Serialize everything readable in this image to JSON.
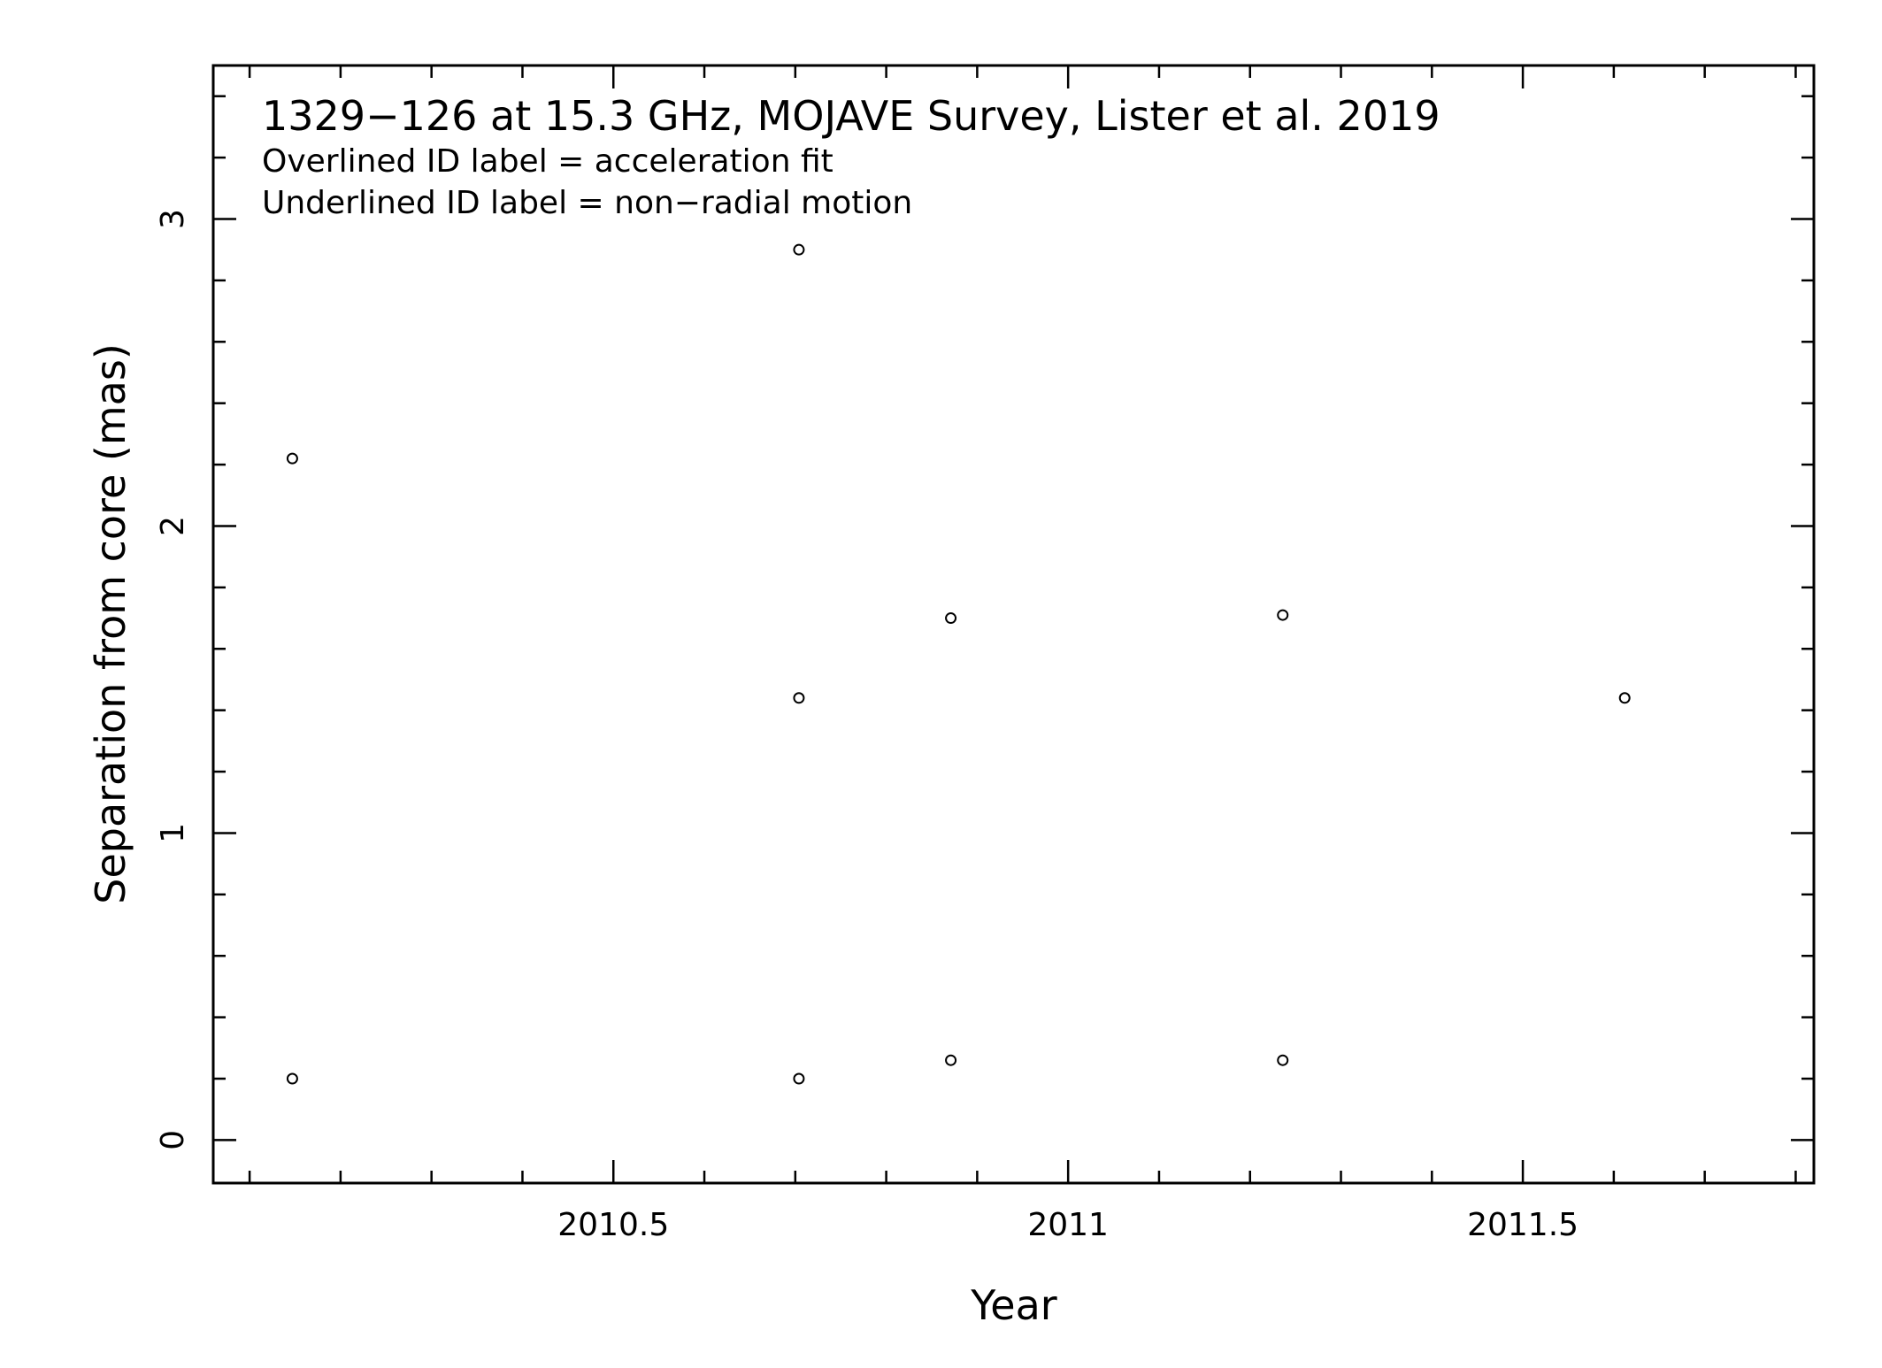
{
  "chart_data": {
    "type": "scatter",
    "title": "1329−126 at 15.3 GHz, MOJAVE Survey, Lister et al. 2019",
    "annotations": [
      "Overlined ID label = acceleration fit",
      "Underlined ID label = non−radial motion"
    ],
    "xlabel": "Year",
    "ylabel": "Separation from core (mas)",
    "xlim": [
      2010.06,
      2011.82
    ],
    "ylim": [
      -0.14,
      3.5
    ],
    "x_ticks": [
      2010.5,
      2011,
      2011.5
    ],
    "x_tick_labels": [
      "2010.5",
      "2011",
      "2011.5"
    ],
    "x_minor_step": 0.1,
    "y_ticks": [
      0,
      1,
      2,
      3
    ],
    "y_tick_labels": [
      "0",
      "1",
      "2",
      "3"
    ],
    "y_minor_step": 0.2,
    "grid": false,
    "marker": "open-circle",
    "series": [
      {
        "points": [
          {
            "x": 2010.147,
            "y": 0.2
          },
          {
            "x": 2010.147,
            "y": 2.22
          },
          {
            "x": 2010.704,
            "y": 0.2
          },
          {
            "x": 2010.704,
            "y": 1.44
          },
          {
            "x": 2010.704,
            "y": 2.9
          },
          {
            "x": 2010.871,
            "y": 0.26
          },
          {
            "x": 2010.871,
            "y": 1.7
          },
          {
            "x": 2011.236,
            "y": 0.26
          },
          {
            "x": 2011.236,
            "y": 1.71
          },
          {
            "x": 2011.612,
            "y": 1.44
          }
        ]
      }
    ]
  }
}
